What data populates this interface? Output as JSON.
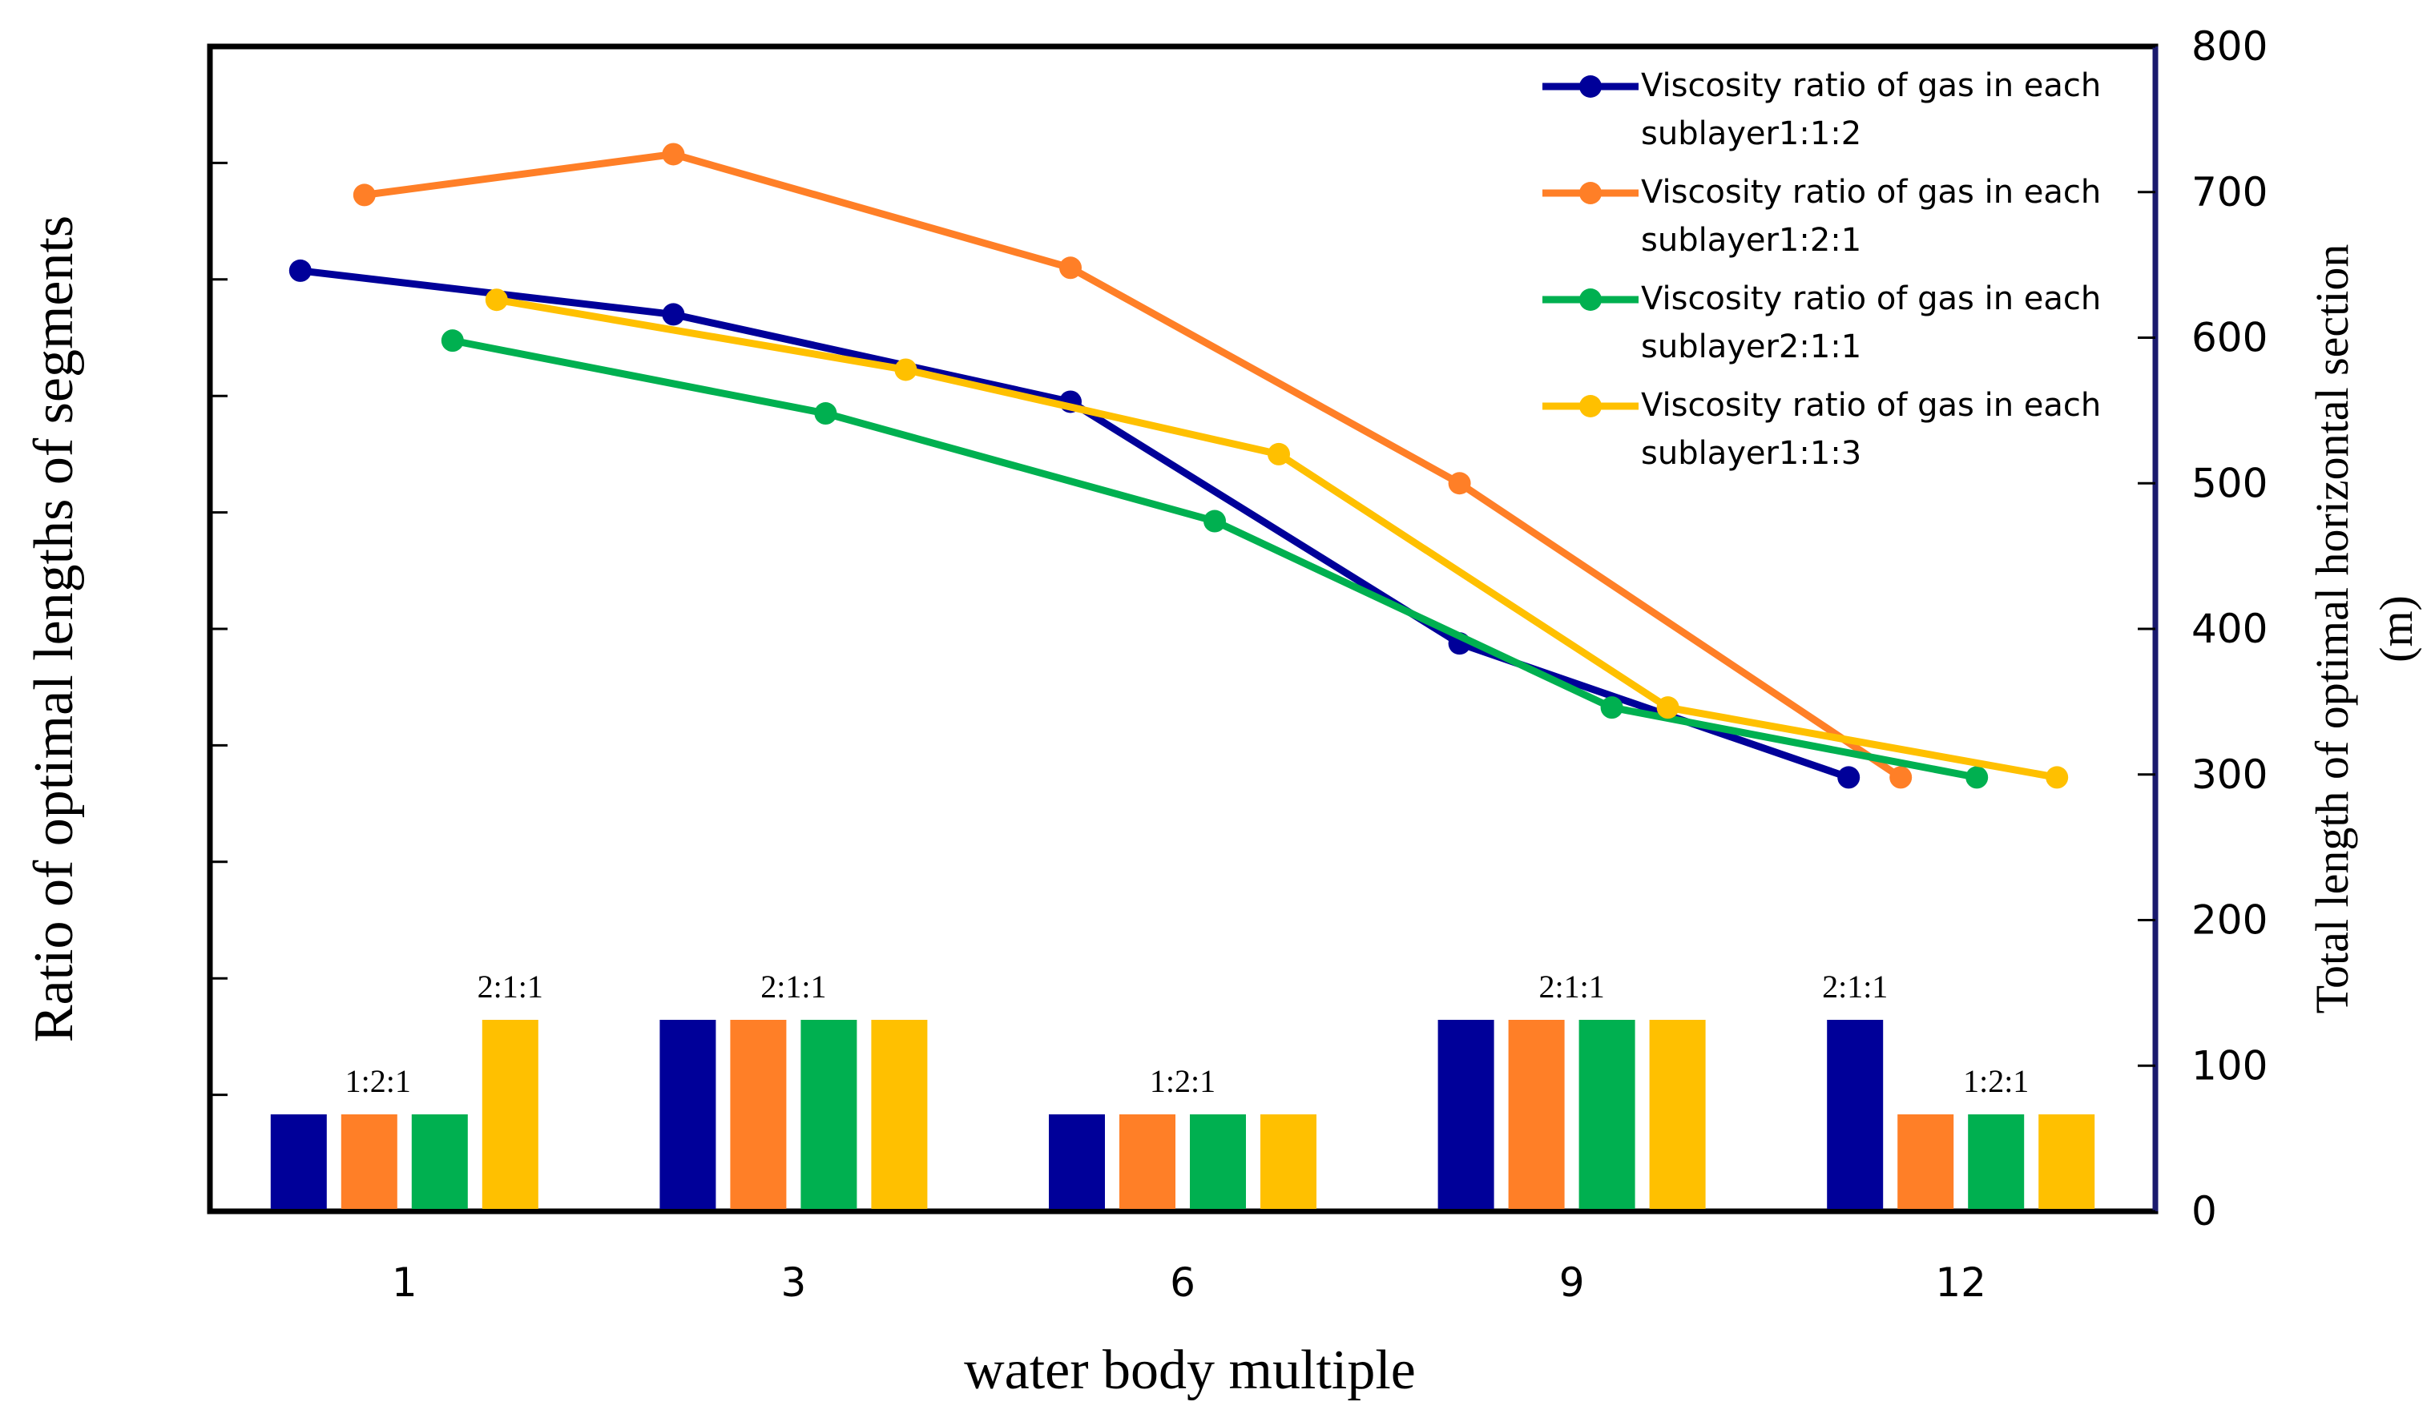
{
  "chart_data": {
    "type": "bar+line",
    "xlabel": "water body multiple",
    "ylabel_left": "Ratio of optimal lengths of segments",
    "ylabel_right_line1": "Total length of optimal horizontal  section",
    "ylabel_right_line2": "(m)",
    "categories": [
      "1",
      "3",
      "6",
      "9",
      "12"
    ],
    "y_right_range": [
      0,
      800
    ],
    "y_right_ticks": [
      "0",
      "100",
      "200",
      "300",
      "400",
      "500",
      "600",
      "700",
      "800"
    ],
    "colors": [
      "#000099",
      "#ff7f27",
      "#00b050",
      "#ffc000"
    ],
    "series": [
      {
        "name": "Viscosity ratio of gas in each sublayer1:1:2",
        "legend_line1": "Viscosity ratio of gas in each",
        "legend_line2": "sublayer1:1:2",
        "values": [
          646,
          616,
          556,
          390,
          298
        ]
      },
      {
        "name": "Viscosity ratio of gas in each sublayer1:2:1",
        "legend_line1": "Viscosity ratio of gas in each",
        "legend_line2": "sublayer1:2:1",
        "values": [
          698,
          726,
          648,
          500,
          298
        ]
      },
      {
        "name": "Viscosity ratio of gas in each sublayer2:1:1",
        "legend_line1": "Viscosity ratio of gas in each",
        "legend_line2": "sublayer2:1:1",
        "values": [
          598,
          548,
          474,
          346,
          298
        ]
      },
      {
        "name": "Viscosity ratio of gas in each sublayer1:1:3",
        "legend_line1": "Viscosity ratio of gas in each",
        "legend_line2": "sublayer1:1:3",
        "values": [
          626,
          578,
          520,
          346,
          298
        ]
      }
    ],
    "bars": [
      {
        "category": "1",
        "values": [
          1,
          1,
          1,
          2
        ],
        "label": "1:2:1",
        "label2": "2:1:1"
      },
      {
        "category": "3",
        "values": [
          2,
          2,
          2,
          2
        ],
        "label": "2:1:1"
      },
      {
        "category": "6",
        "values": [
          1,
          1,
          1,
          1
        ],
        "label": "1:2:1"
      },
      {
        "category": "9",
        "values": [
          2,
          2,
          2,
          2
        ],
        "label": "2:1:1"
      },
      {
        "category": "12",
        "values": [
          2,
          1,
          1,
          1
        ],
        "label": "2:1:1",
        "label2": "1:2:1"
      }
    ],
    "legend_position": "top-right"
  }
}
